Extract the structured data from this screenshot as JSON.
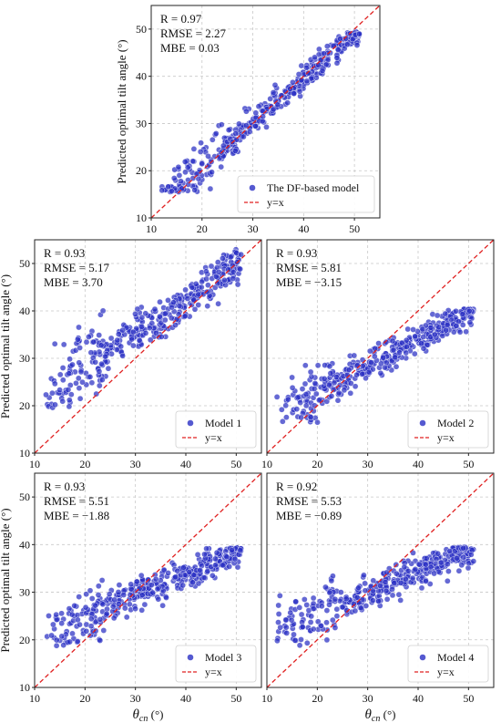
{
  "chart_data": [
    {
      "type": "scatter",
      "stats": {
        "r": "R = 0.97",
        "rmse": "RMSE = 2.27",
        "mbe": "MBE = 0.03"
      },
      "series": [
        {
          "name": "The DF-based model",
          "color": "#2a2fc4"
        },
        {
          "name": "y=x",
          "color": "#e02020",
          "style": "dashed"
        }
      ],
      "ylabel": "Predicted optimal tilt angle (°)",
      "xlabel": "",
      "xlim": [
        10,
        55
      ],
      "ylim": [
        10,
        55
      ],
      "xticks": [
        "10",
        "20",
        "30",
        "40",
        "50"
      ],
      "yticks": [
        "10",
        "20",
        "30",
        "40",
        "50"
      ],
      "fit": {
        "slope": 0.95,
        "intercept": 1.6,
        "spread": 1.6
      },
      "y_range": [
        15.5,
        49.5
      ],
      "grid": true,
      "legend": "bottom-right"
    },
    {
      "type": "scatter",
      "stats": {
        "r": "R = 0.93",
        "rmse": "RMSE = 5.17",
        "mbe": "MBE = 3.70"
      },
      "series": [
        {
          "name": "Model 1",
          "color": "#2a2fc4"
        },
        {
          "name": "y=x",
          "color": "#e02020",
          "style": "dashed"
        }
      ],
      "ylabel": "Predicted optimal tilt angle (°)",
      "xlabel": "",
      "xlim": [
        10,
        55
      ],
      "ylim": [
        10,
        55
      ],
      "xticks": [
        "10",
        "20",
        "30",
        "40",
        "50"
      ],
      "yticks": [
        "10",
        "20",
        "30",
        "40",
        "50"
      ],
      "fit": {
        "slope": 0.72,
        "intercept": 13.5,
        "spread": 2.2
      },
      "y_range": [
        19.5,
        53
      ],
      "grid": true,
      "legend": "bottom-right"
    },
    {
      "type": "scatter",
      "stats": {
        "r": "R = 0.93",
        "rmse": "RMSE = 5.81",
        "mbe": "MBE = −3.15"
      },
      "series": [
        {
          "name": "Model 2",
          "color": "#2a2fc4"
        },
        {
          "name": "y=x",
          "color": "#e02020",
          "style": "dashed"
        }
      ],
      "ylabel": "",
      "xlabel": "",
      "xlim": [
        10,
        55
      ],
      "ylim": [
        10,
        55
      ],
      "xticks": [
        "10",
        "20",
        "30",
        "40",
        "50"
      ],
      "yticks": [],
      "fit": {
        "slope": 0.56,
        "intercept": 11.5,
        "spread": 1.7
      },
      "y_range": [
        16.5,
        40.5
      ],
      "grid": true,
      "legend": "bottom-right"
    },
    {
      "type": "scatter",
      "stats": {
        "r": "R = 0.93",
        "rmse": "RMSE = 5.51",
        "mbe": "MBE = −1.88"
      },
      "series": [
        {
          "name": "Model 3",
          "color": "#2a2fc4"
        },
        {
          "name": "y=x",
          "color": "#e02020",
          "style": "dashed"
        }
      ],
      "ylabel": "Predicted optimal tilt angle (°)",
      "xlabel": "θcn (°)",
      "xlim": [
        10,
        55
      ],
      "ylim": [
        10,
        55
      ],
      "xticks": [
        "10",
        "20",
        "30",
        "40",
        "50"
      ],
      "yticks": [
        "10",
        "20",
        "30",
        "40",
        "50"
      ],
      "fit": {
        "slope": 0.45,
        "intercept": 16.0,
        "spread": 1.7
      },
      "y_range": [
        17.5,
        39.5
      ],
      "grid": true,
      "legend": "bottom-right"
    },
    {
      "type": "scatter",
      "stats": {
        "r": "R = 0.92",
        "rmse": "RMSE = 5.53",
        "mbe": "MBE = −0.89"
      },
      "series": [
        {
          "name": "Model 4",
          "color": "#2a2fc4"
        },
        {
          "name": "y=x",
          "color": "#e02020",
          "style": "dashed"
        }
      ],
      "ylabel": "",
      "xlabel": "θcn (°)",
      "xlim": [
        10,
        55
      ],
      "ylim": [
        10,
        55
      ],
      "xticks": [
        "10",
        "20",
        "30",
        "40",
        "50"
      ],
      "yticks": [],
      "fit": {
        "slope": 0.43,
        "intercept": 17.0,
        "spread": 1.7
      },
      "y_range": [
        18.5,
        39.5
      ],
      "grid": true,
      "legend": "bottom-right"
    }
  ]
}
